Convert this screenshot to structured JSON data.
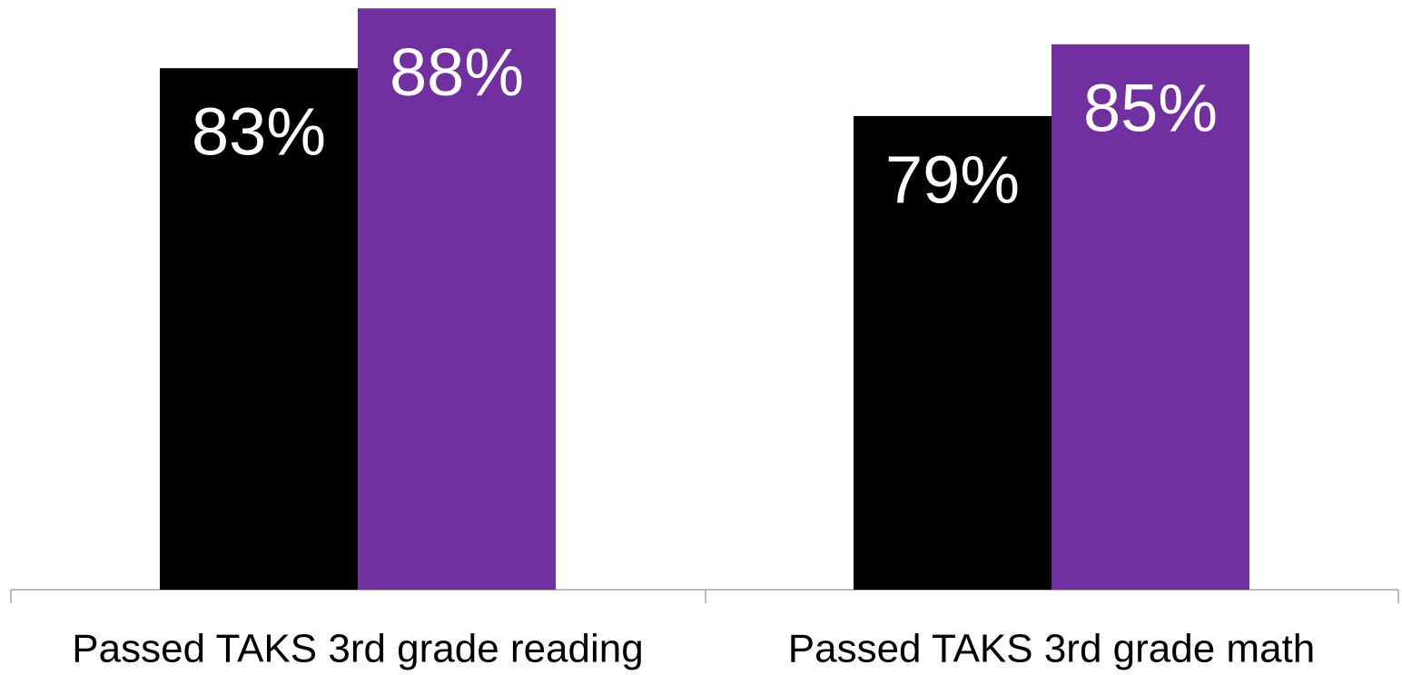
{
  "chart_data": {
    "type": "bar",
    "categories": [
      "Passed TAKS 3rd grade reading",
      "Passed TAKS 3rd grade math"
    ],
    "series": [
      {
        "color": "#000000",
        "values": [
          83,
          79
        ],
        "value_labels": [
          "83%",
          "79%"
        ]
      },
      {
        "color": "#7030a0",
        "values": [
          88,
          85
        ],
        "value_labels": [
          "88%",
          "85%"
        ]
      }
    ],
    "ylim": [
      39.4,
      88.7
    ]
  }
}
